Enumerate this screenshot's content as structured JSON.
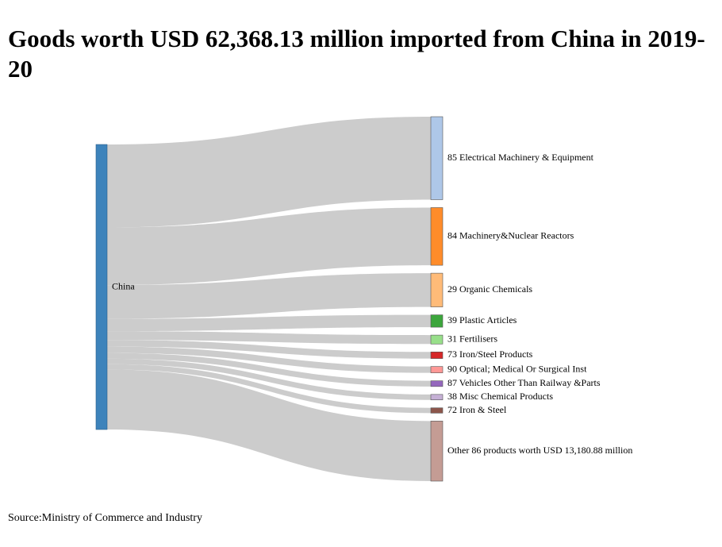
{
  "title": "Goods worth USD 62,368.13 million imported from China in 2019-20",
  "source": "Source:Ministry of Commerce and Industry",
  "chart_data": {
    "type": "sankey",
    "source_node": {
      "label": "China",
      "color": "#3d83bb"
    },
    "link_color": "#cccccc",
    "targets": [
      {
        "label": "85 Electrical Machinery & Equipment",
        "value": 18200,
        "color": "#aec7e8"
      },
      {
        "label": "84 Machinery&Nuclear Reactors",
        "value": 12650,
        "color": "#ff8c2a"
      },
      {
        "label": "29 Organic Chemicals",
        "value": 7400,
        "color": "#ffbb78"
      },
      {
        "label": "39 Plastic Articles",
        "value": 2700,
        "color": "#3ca63c"
      },
      {
        "label": "31 Fertilisers",
        "value": 1950,
        "color": "#98df8a"
      },
      {
        "label": "73 Iron/Steel Products",
        "value": 1450,
        "color": "#d62728"
      },
      {
        "label": "90 Optical; Medical Or Surgical Inst",
        "value": 1400,
        "color": "#ff9896"
      },
      {
        "label": "87 Vehicles Other Than Railway &Parts",
        "value": 1250,
        "color": "#9467bd"
      },
      {
        "label": "38 Misc Chemical Products",
        "value": 1200,
        "color": "#c5b0d5"
      },
      {
        "label": "72 Iron & Steel",
        "value": 1150,
        "color": "#8c564b"
      },
      {
        "label": "Other 86 products worth USD 13,180.88 million",
        "value": 13180.88,
        "color": "#c49c94"
      }
    ]
  }
}
